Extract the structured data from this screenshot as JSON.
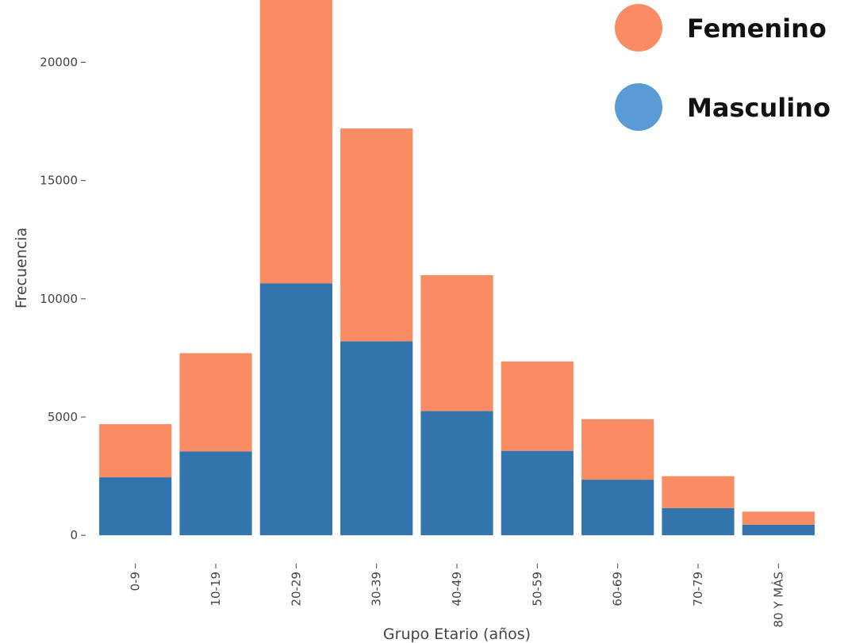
{
  "chart_data": {
    "type": "bar",
    "stacked": true,
    "title": "",
    "xlabel": "Grupo Etario (años)",
    "ylabel": "Frecuencia",
    "ylim": [
      -900,
      22700
    ],
    "yticks": [
      0,
      5000,
      10000,
      15000,
      20000
    ],
    "categories": [
      "0-9",
      "10-19",
      "20-29",
      "30-39",
      "40-49",
      "50-59",
      "60-69",
      "70-79",
      "80 Y MÁS"
    ],
    "series": [
      {
        "name": "Masculino",
        "color": "#3274ac",
        "values": [
          2450,
          3550,
          10650,
          8200,
          5250,
          3570,
          2350,
          1150,
          450
        ]
      },
      {
        "name": "Femenino",
        "color": "#fa8c64",
        "values": [
          2250,
          4150,
          12100,
          9000,
          5750,
          3780,
          2560,
          1350,
          550
        ]
      }
    ],
    "legend": {
      "placement": "top-right",
      "items": [
        {
          "name": "Femenino",
          "color": "#fa8c64"
        },
        {
          "name": "Masculino",
          "color": "#5b9bd5"
        }
      ]
    },
    "grid": false
  }
}
